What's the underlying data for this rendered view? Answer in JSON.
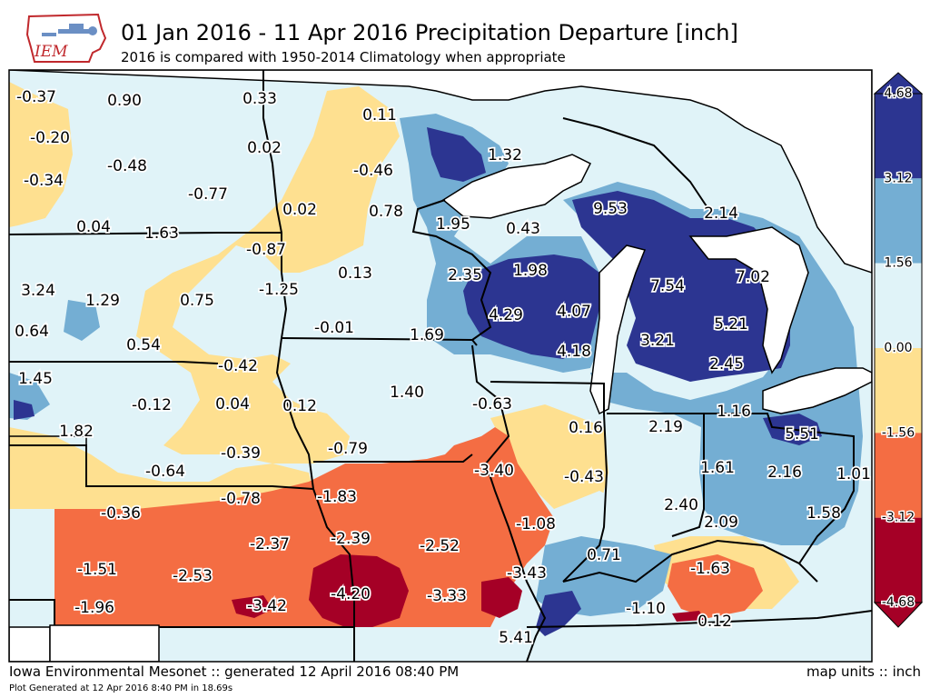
{
  "header": {
    "title": "01 Jan 2016 - 11 Apr 2016 Precipitation Departure [inch]",
    "subtitle": "2016 is compared with 1950-2014 Climatology when appropriate",
    "logo_text": "IEM"
  },
  "footer": {
    "source": "Iowa Environmental Mesonet :: generated 12 April 2016 08:40 PM",
    "units": "map units :: inch",
    "generated": "Plot Generated at 12 Apr 2016 8:40 PM in 18.69s"
  },
  "colorbar": {
    "ticks": [
      "4.68",
      "3.12",
      "1.56",
      "0.00",
      "-1.56",
      "-3.12",
      "-4.68"
    ],
    "colors": [
      "#2c3591",
      "#74aed3",
      "#e0f3f8",
      "#fee090",
      "#f46d43",
      "#a50026"
    ]
  },
  "map": {
    "colors": {
      "water": "#ffffff",
      "light_blue": "#e0f3f8",
      "mid_blue": "#74aed3",
      "dark_blue": "#2c3591",
      "light_orange": "#fee090",
      "orange": "#f46d43",
      "dark_red": "#a50026"
    },
    "values": [
      {
        "text": "-0.37"
      },
      {
        "text": "0.90"
      },
      {
        "text": "0.33"
      },
      {
        "text": "0.11"
      },
      {
        "text": "-0.20"
      },
      {
        "text": "1.32"
      },
      {
        "text": "0.02"
      },
      {
        "text": "-0.48"
      },
      {
        "text": "-0.46"
      },
      {
        "text": "-0.34"
      },
      {
        "text": "-0.77"
      },
      {
        "text": "9.53"
      },
      {
        "text": "0.02"
      },
      {
        "text": "0.78"
      },
      {
        "text": "2.14"
      },
      {
        "text": "0.04"
      },
      {
        "text": "1.95"
      },
      {
        "text": "0.43"
      },
      {
        "text": "1.63"
      },
      {
        "text": "-0.87"
      },
      {
        "text": "0.13"
      },
      {
        "text": "2.35"
      },
      {
        "text": "1.98"
      },
      {
        "text": "7.54"
      },
      {
        "text": "7.02"
      },
      {
        "text": "3.24"
      },
      {
        "text": "1.29"
      },
      {
        "text": "0.75"
      },
      {
        "text": "-1.25"
      },
      {
        "text": "4.29"
      },
      {
        "text": "4.07"
      },
      {
        "text": "5.21"
      },
      {
        "text": "0.64"
      },
      {
        "text": "-0.01"
      },
      {
        "text": "1.69"
      },
      {
        "text": "3.21"
      },
      {
        "text": "0.54"
      },
      {
        "text": "4.18"
      },
      {
        "text": "2.45"
      },
      {
        "text": "-0.42"
      },
      {
        "text": "1.45"
      },
      {
        "text": "1.40"
      },
      {
        "text": "-0.12"
      },
      {
        "text": "0.04"
      },
      {
        "text": "0.12"
      },
      {
        "text": "-0.63"
      },
      {
        "text": "1.16"
      },
      {
        "text": "2.19"
      },
      {
        "text": "0.16"
      },
      {
        "text": "5.51"
      },
      {
        "text": "1.82"
      },
      {
        "text": "-0.39"
      },
      {
        "text": "-0.79"
      },
      {
        "text": "-0.64"
      },
      {
        "text": "-3.40"
      },
      {
        "text": "-0.43"
      },
      {
        "text": "1.61"
      },
      {
        "text": "2.16"
      },
      {
        "text": "1.01"
      },
      {
        "text": "-0.78"
      },
      {
        "text": "-1.83"
      },
      {
        "text": "-0.36"
      },
      {
        "text": "2.40"
      },
      {
        "text": "1.58"
      },
      {
        "text": "-1.08"
      },
      {
        "text": "2.09"
      },
      {
        "text": "-2.37"
      },
      {
        "text": "-2.39"
      },
      {
        "text": "-2.52"
      },
      {
        "text": "0.71"
      },
      {
        "text": "-1.51"
      },
      {
        "text": "-2.53"
      },
      {
        "text": "-3.43"
      },
      {
        "text": "-1.63"
      },
      {
        "text": "-4.20"
      },
      {
        "text": "-3.33"
      },
      {
        "text": "-1.96"
      },
      {
        "text": "-3.42"
      },
      {
        "text": "-1.10"
      },
      {
        "text": "0.12"
      },
      {
        "text": "5.41"
      }
    ]
  }
}
